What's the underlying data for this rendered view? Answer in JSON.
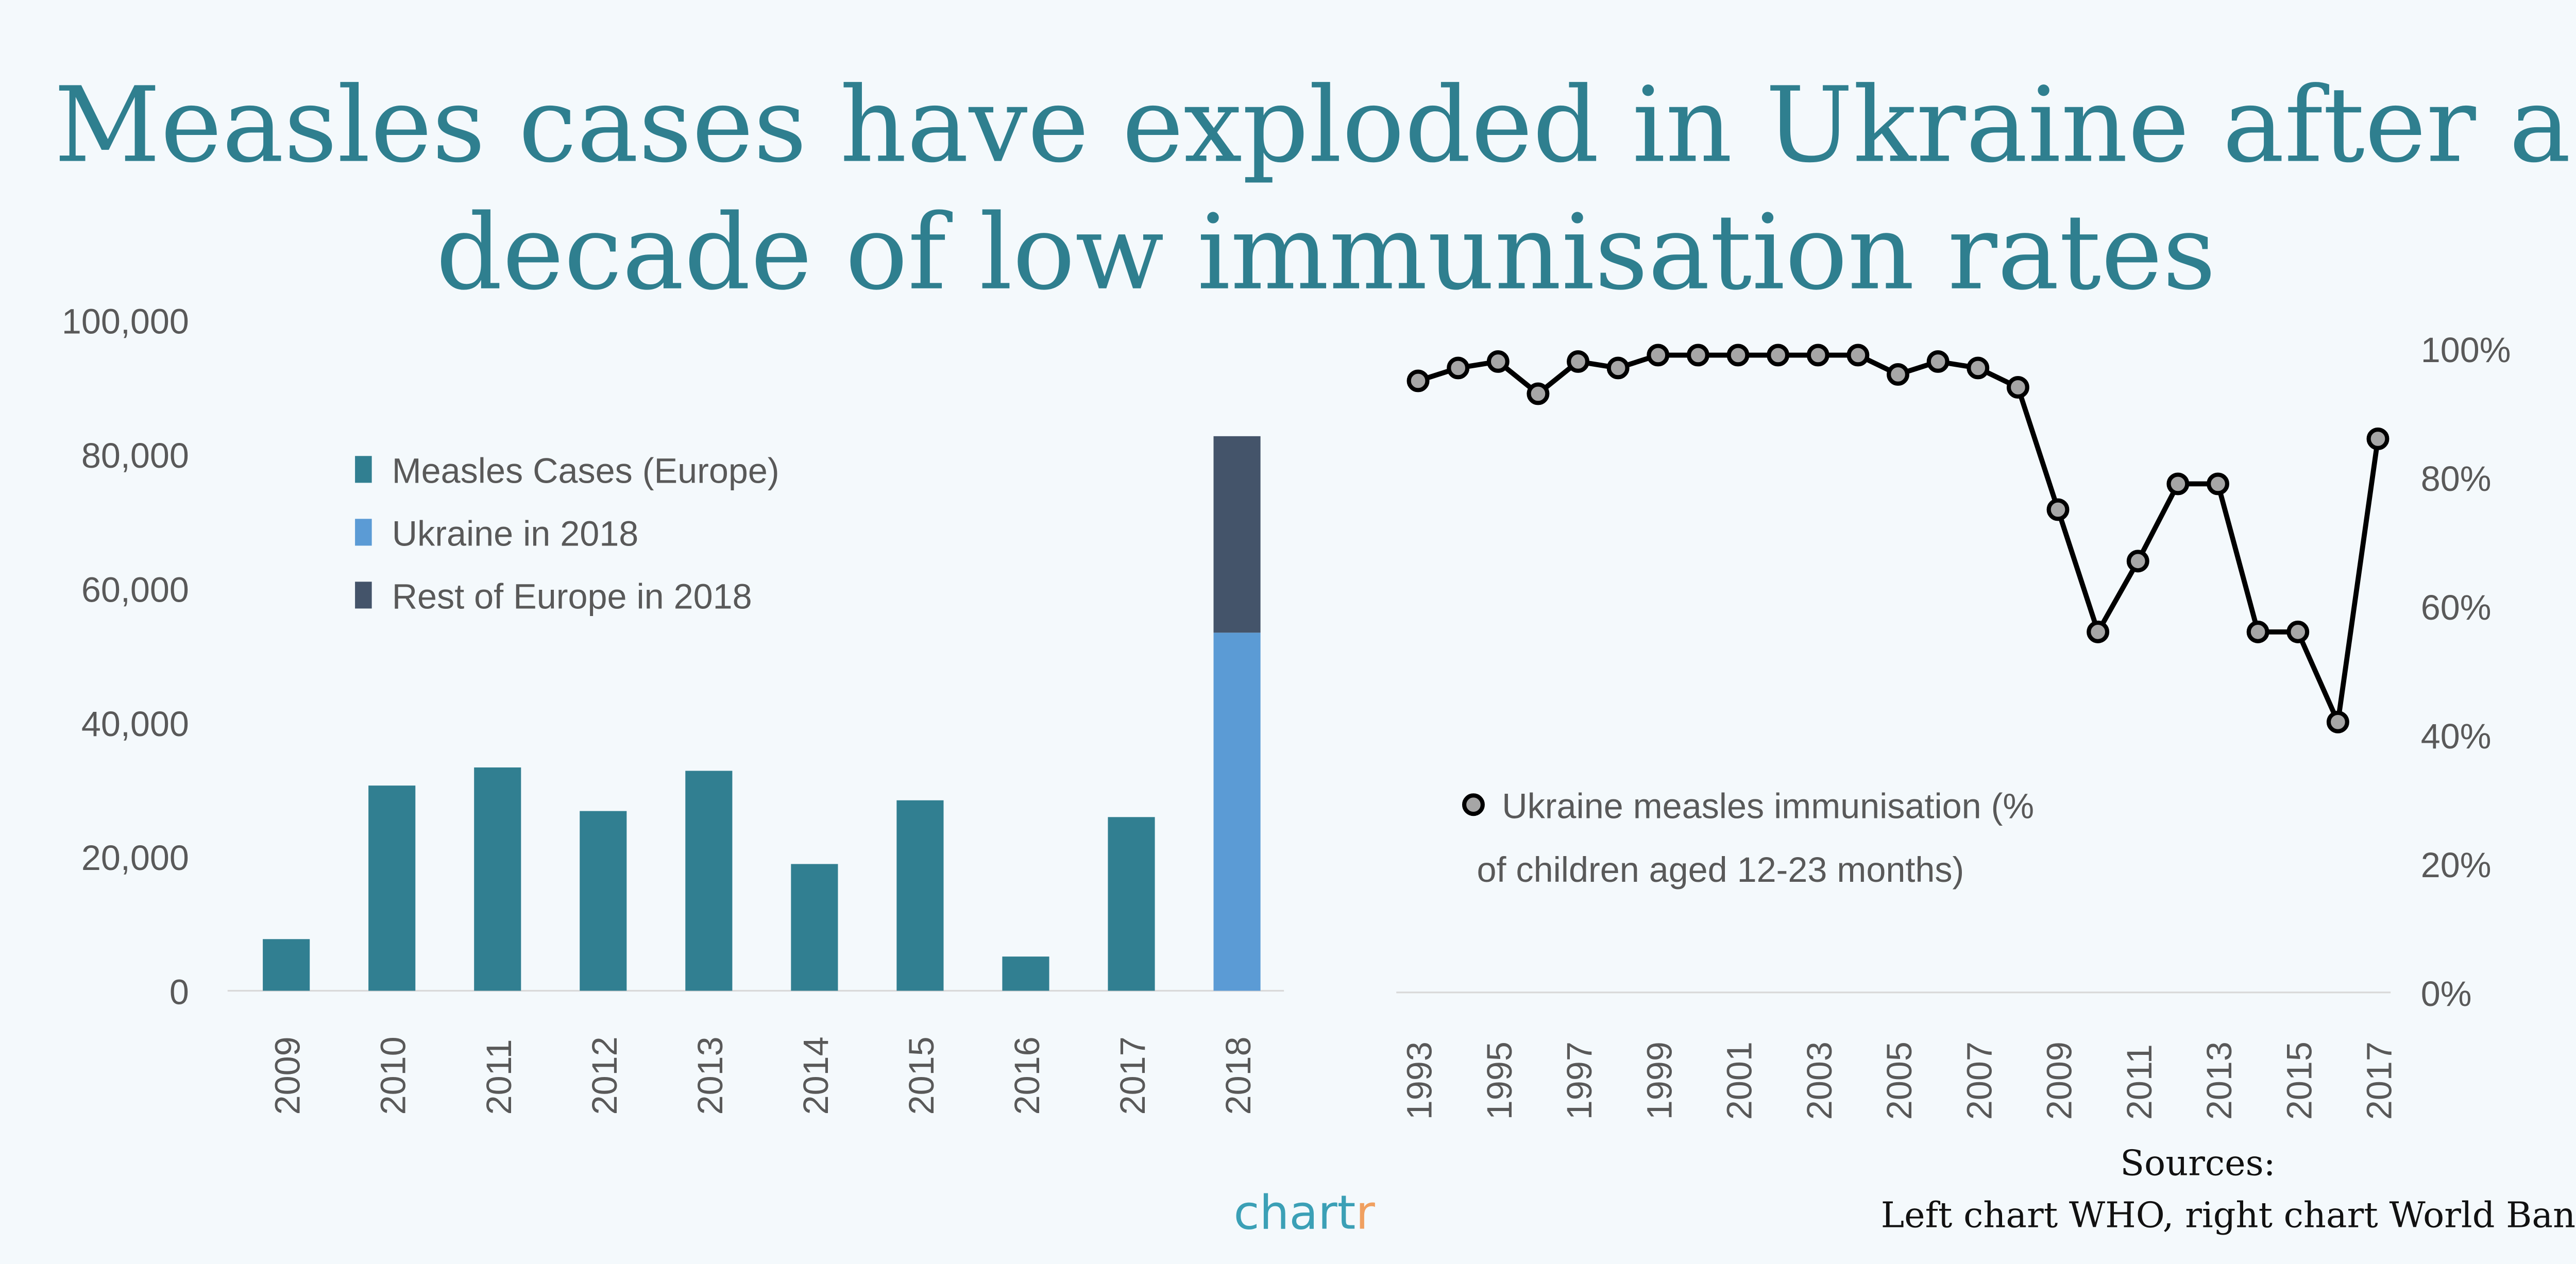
{
  "title": {
    "line1": "Measles cases have exploded in Ukraine after a",
    "line2": "decade of low immunisation rates"
  },
  "footer": {
    "sources_label": "Sources:",
    "sources_text": "Left chart WHO, right chart World Bank",
    "logo_main": "chart",
    "logo_end": "r",
    "logo_color": "#3ba0b6",
    "logo_accent": "#f0a060"
  },
  "chart_data": [
    {
      "type": "bar",
      "stacked": true,
      "categories": [
        "2009",
        "2010",
        "2011",
        "2012",
        "2013",
        "2014",
        "2015",
        "2016",
        "2017",
        "2018"
      ],
      "series": [
        {
          "name": "Measles Cases (Europe)",
          "color": "#317f91",
          "values": [
            7700,
            30600,
            33300,
            26800,
            32800,
            18900,
            28400,
            5100,
            25900,
            null
          ]
        },
        {
          "name": "Ukraine in 2018",
          "color": "#5b9bd5",
          "values": [
            null,
            null,
            null,
            null,
            null,
            null,
            null,
            null,
            null,
            53400
          ]
        },
        {
          "name": "Rest of Europe in 2018",
          "color": "#44546a",
          "values": [
            null,
            null,
            null,
            null,
            null,
            null,
            null,
            null,
            null,
            29300
          ]
        }
      ],
      "ylim": [
        0,
        100000
      ],
      "yticks": [
        "0",
        "20,000",
        "40,000",
        "60,000",
        "80,000",
        "100,000"
      ],
      "grid": false,
      "legend": "top-left"
    },
    {
      "type": "line",
      "x": [
        "1993",
        "1994",
        "1995",
        "1996",
        "1997",
        "1998",
        "1999",
        "2000",
        "2001",
        "2002",
        "2003",
        "2004",
        "2005",
        "2006",
        "2007",
        "2008",
        "2009",
        "2010",
        "2011",
        "2012",
        "2013",
        "2014",
        "2015",
        "2016",
        "2017"
      ],
      "xtick_labels": [
        "1993",
        "1995",
        "1997",
        "1999",
        "2001",
        "2003",
        "2005",
        "2007",
        "2009",
        "2011",
        "2013",
        "2015",
        "2017"
      ],
      "series": [
        {
          "name": "Ukraine measles immunisation (% of children aged 12-23 months)",
          "legend_line1": "Ukraine measles immunisation (%",
          "legend_line2": "of children aged 12-23 months)",
          "color": "#000000",
          "marker_fill": "#a6a6a6",
          "values": [
            95,
            97,
            98,
            93,
            98,
            97,
            99,
            99,
            99,
            99,
            99,
            99,
            96,
            98,
            97,
            94,
            75,
            56,
            67,
            79,
            79,
            56,
            56,
            42,
            86
          ]
        }
      ],
      "ylim": [
        0,
        100
      ],
      "yticks": [
        "0%",
        "20%",
        "40%",
        "60%",
        "80%",
        "100%"
      ],
      "yaxis_side": "right",
      "grid": false,
      "legend": "center"
    }
  ]
}
